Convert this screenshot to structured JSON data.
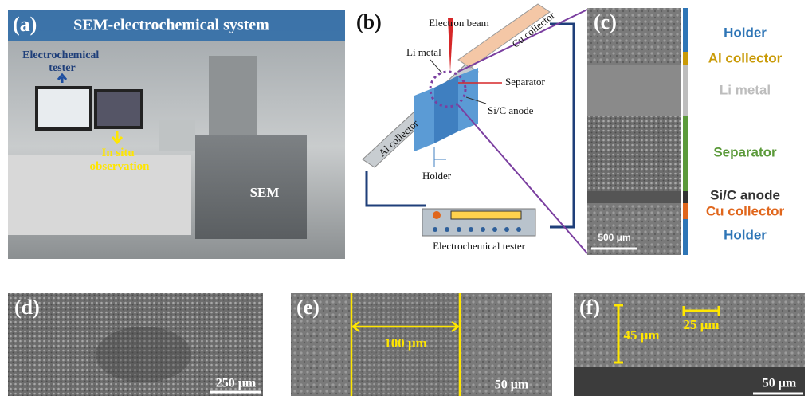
{
  "panels": {
    "a": {
      "label": "(a)",
      "title": "SEM-electrochemical system",
      "tester": [
        "Electrochemical",
        "tester"
      ],
      "observation": [
        "In situ",
        "observation"
      ],
      "sem": "SEM"
    },
    "b": {
      "label": "(b)",
      "electron_beam": "Electron beam",
      "li_metal": "Li metal",
      "cu_collector": "Cu collector",
      "separator": "Separator",
      "anode": "Si/C anode",
      "al_collector": "Al collector",
      "holder": "Holder",
      "tester": "Electrochemical tester"
    },
    "c": {
      "label": "(c)",
      "scale_bar": "500 μm",
      "layers": [
        {
          "name": "Holder",
          "color": "#2e75b6"
        },
        {
          "name": "Al collector",
          "color": "#c99a06"
        },
        {
          "name": "Li metal",
          "color": "#bdbdbd"
        },
        {
          "name": "Separator",
          "color": "#5b9a3a"
        },
        {
          "name": "Si/C anode",
          "color": "#333333"
        },
        {
          "name": "Cu collector",
          "color": "#e0661c"
        },
        {
          "name": "Holder",
          "color": "#2e75b6"
        }
      ]
    },
    "d": {
      "label": "(d)",
      "scale_bar": "250 μm"
    },
    "e": {
      "label": "(e)",
      "width": "100 μm",
      "scale_bar": "50 μm"
    },
    "f": {
      "label": "(f)",
      "height": "45 μm",
      "width": "25 μm",
      "scale_bar": "50 μm"
    }
  }
}
